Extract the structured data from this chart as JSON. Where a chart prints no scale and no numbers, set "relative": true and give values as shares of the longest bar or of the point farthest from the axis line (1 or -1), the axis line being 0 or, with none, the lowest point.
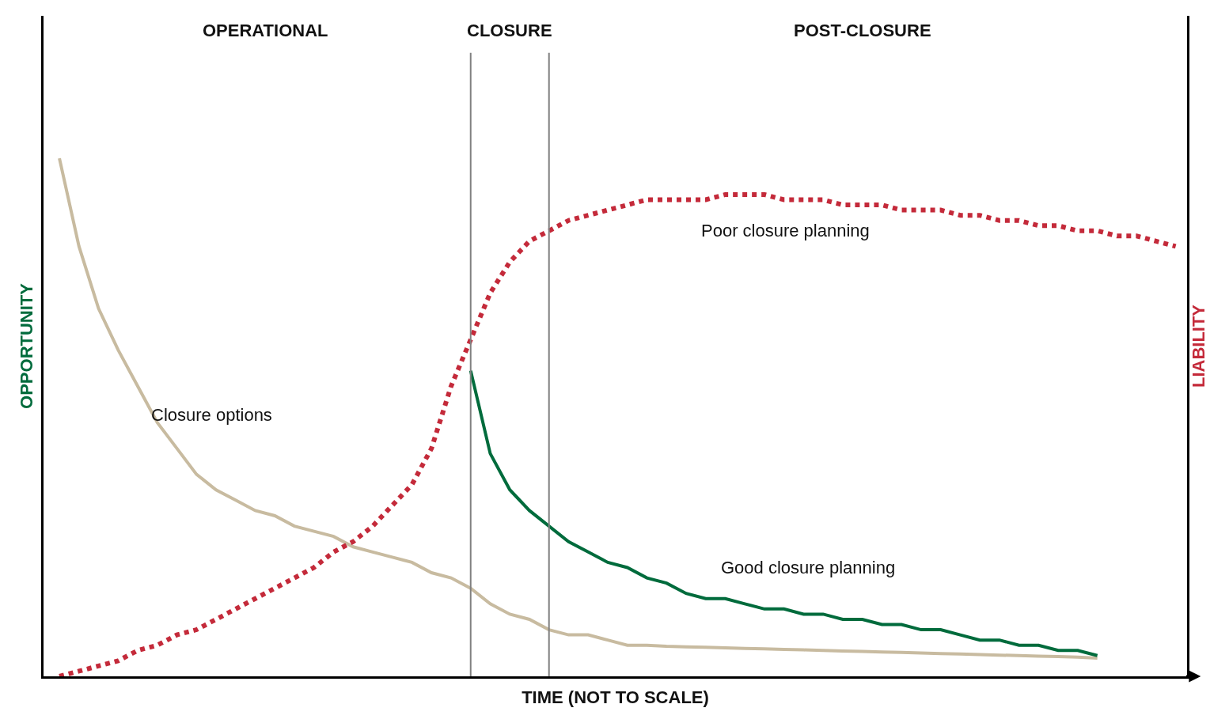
{
  "chart_data": {
    "type": "line",
    "relative": true,
    "xlabel": "TIME (NOT TO SCALE)",
    "ylabel": "OPPORTUNITY",
    "y2label": "LIABILITY",
    "categories": [
      null,
      null,
      null,
      null,
      null,
      null,
      null,
      null,
      null,
      null,
      null,
      null,
      null,
      null,
      null,
      null,
      null,
      null,
      null,
      null,
      null,
      null,
      null,
      null,
      null,
      null,
      null,
      null,
      null,
      null,
      null,
      null,
      null,
      null,
      null,
      null,
      null,
      null,
      null,
      null,
      null,
      null,
      null,
      null,
      null,
      null,
      null,
      null,
      null,
      null,
      null,
      null,
      null,
      null,
      null,
      null,
      null,
      null
    ],
    "series": [
      {
        "name": "Closure options",
        "color": "#c8bba0",
        "line_style": "solid",
        "values": [
          1,
          0.83,
          0.71,
          0.63,
          0.56,
          0.49,
          0.44,
          0.39,
          0.36,
          0.34,
          0.32,
          0.31,
          0.29,
          0.28,
          0.27,
          0.25,
          0.24,
          0.23,
          0.22,
          0.2,
          0.19,
          0.17,
          0.14,
          0.12,
          0.11,
          0.09,
          0.08,
          0.08,
          0.07,
          0.06,
          0.06,
          0.058,
          0.057,
          0.056,
          0.055,
          0.054,
          0.053,
          0.052,
          0.051,
          0.05,
          0.049,
          0.048,
          0.047,
          0.046,
          0.045,
          0.044,
          0.043,
          0.042,
          0.041,
          0.04,
          0.039,
          0.038,
          0.037,
          0.035,
          null,
          null,
          null,
          null
        ]
      },
      {
        "name": "Poor closure planning",
        "color": "#c42a3a",
        "line_style": "dotted",
        "values": [
          0,
          0.01,
          0.02,
          0.03,
          0.05,
          0.06,
          0.08,
          0.09,
          0.11,
          0.13,
          0.15,
          0.17,
          0.19,
          0.21,
          0.24,
          0.26,
          0.29,
          0.33,
          0.37,
          0.44,
          0.56,
          0.65,
          0.74,
          0.8,
          0.84,
          0.86,
          0.88,
          0.89,
          0.9,
          0.91,
          0.92,
          0.92,
          0.92,
          0.92,
          0.93,
          0.93,
          0.93,
          0.92,
          0.92,
          0.92,
          0.91,
          0.91,
          0.91,
          0.9,
          0.9,
          0.9,
          0.89,
          0.89,
          0.88,
          0.88,
          0.87,
          0.87,
          0.86,
          0.86,
          0.85,
          0.85,
          0.84,
          0.83
        ]
      },
      {
        "name": "Good closure planning",
        "color": "#006b3c",
        "line_style": "solid",
        "values": [
          null,
          null,
          null,
          null,
          null,
          null,
          null,
          null,
          null,
          null,
          null,
          null,
          null,
          null,
          null,
          null,
          null,
          null,
          null,
          null,
          null,
          0.59,
          0.43,
          0.36,
          0.32,
          0.29,
          0.26,
          0.24,
          0.22,
          0.21,
          0.19,
          0.18,
          0.16,
          0.15,
          0.15,
          0.14,
          0.13,
          0.13,
          0.12,
          0.12,
          0.11,
          0.11,
          0.1,
          0.1,
          0.09,
          0.09,
          0.08,
          0.07,
          0.07,
          0.06,
          0.06,
          0.05,
          0.05,
          0.04,
          null,
          null,
          null,
          null
        ]
      }
    ],
    "annotations": [
      "OPERATIONAL",
      "CLOSURE",
      "POST-CLOSURE"
    ],
    "legend": false,
    "marker": "none"
  }
}
